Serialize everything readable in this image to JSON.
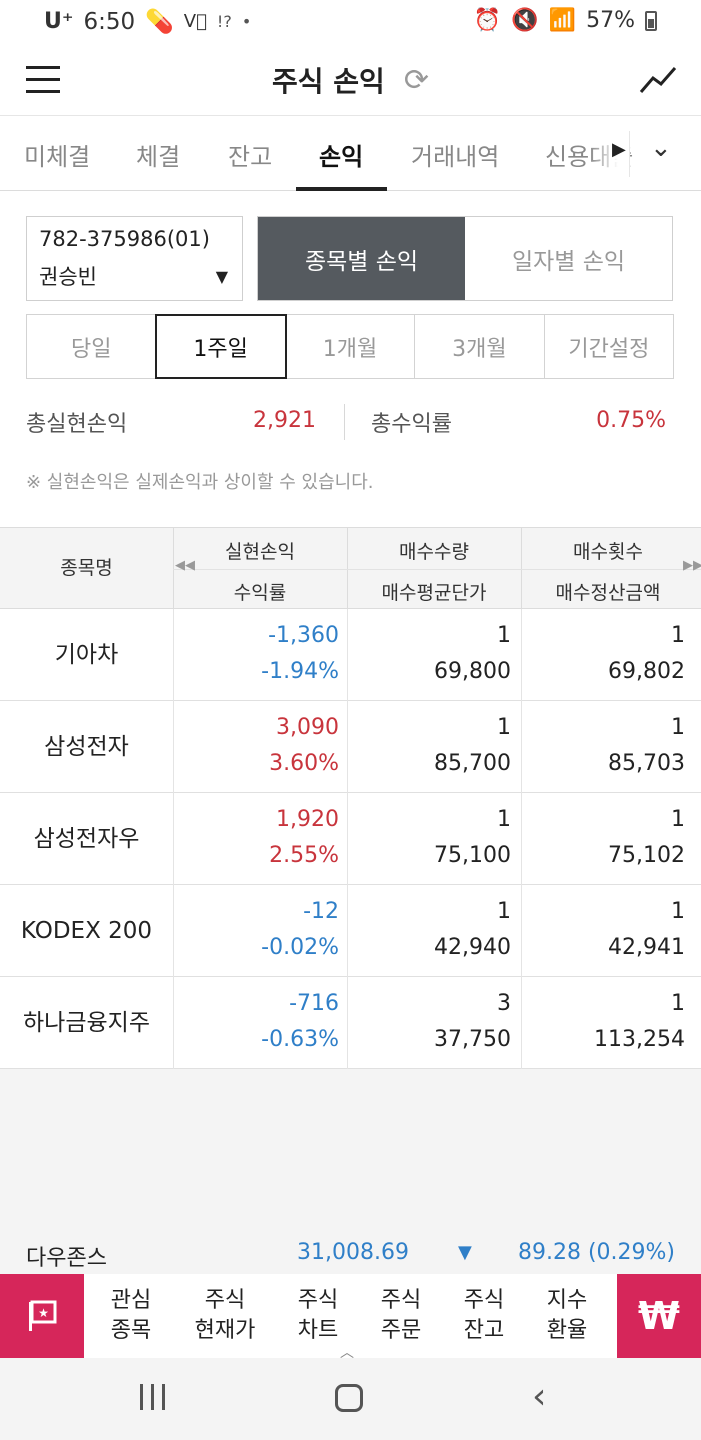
{
  "status_bar": {
    "carrier": "U⁺",
    "time": "6:50",
    "extra": "!?",
    "dot": "•",
    "battery": "57%"
  },
  "header": {
    "title": "주식 손익"
  },
  "tabs": [
    {
      "label": "미체결",
      "active": false
    },
    {
      "label": "체결",
      "active": false
    },
    {
      "label": "잔고",
      "active": false
    },
    {
      "label": "손익",
      "active": true
    },
    {
      "label": "거래내역",
      "active": false
    },
    {
      "label": "신용대출",
      "active": false
    }
  ],
  "account": {
    "number": "782-375986(01)",
    "name": "권승빈"
  },
  "view_toggle": {
    "by_stock": "종목별 손익",
    "by_date": "일자별 손익"
  },
  "periods": [
    {
      "label": "당일",
      "active": false
    },
    {
      "label": "1주일",
      "active": true
    },
    {
      "label": "1개월",
      "active": false
    },
    {
      "label": "3개월",
      "active": false
    },
    {
      "label": "기간설정",
      "active": false
    }
  ],
  "summary": {
    "total_label": "총실현손익",
    "total_value": "2,921",
    "rate_label": "총수익률",
    "rate_value": "0.75%"
  },
  "note": "※ 실현손익은 실제손익과 상이할 수 있습니다.",
  "table": {
    "headers": {
      "name": "종목명",
      "col1_top": "실현손익",
      "col1_bot": "수익률",
      "col2_top": "매수수량",
      "col2_bot": "매수평균단가",
      "col3_top": "매수횟수",
      "col3_bot": "매수정산금액"
    },
    "rows": [
      {
        "name": "기아차",
        "profit": "-1,360",
        "rate": "-1.94%",
        "qty": "1",
        "avg_price": "69,800",
        "count": "1",
        "amount": "69,802",
        "sign": "neg"
      },
      {
        "name": "삼성전자",
        "profit": "3,090",
        "rate": "3.60%",
        "qty": "1",
        "avg_price": "85,700",
        "count": "1",
        "amount": "85,703",
        "sign": "pos"
      },
      {
        "name": "삼성전자우",
        "profit": "1,920",
        "rate": "2.55%",
        "qty": "1",
        "avg_price": "75,100",
        "count": "1",
        "amount": "75,102",
        "sign": "pos"
      },
      {
        "name": "KODEX 200",
        "profit": "-12",
        "rate": "-0.02%",
        "qty": "1",
        "avg_price": "42,940",
        "count": "1",
        "amount": "42,941",
        "sign": "neg"
      },
      {
        "name": "하나금융지주",
        "profit": "-716",
        "rate": "-0.63%",
        "qty": "3",
        "avg_price": "37,750",
        "count": "1",
        "amount": "113,254",
        "sign": "neg"
      }
    ]
  },
  "ticker": {
    "name": "다우존스",
    "value": "31,008.69",
    "change": "89.28 (0.29%)"
  },
  "quick_menu": [
    {
      "line1": "관심",
      "line2": "종목"
    },
    {
      "line1": "주식",
      "line2": "현재가"
    },
    {
      "line1": "주식",
      "line2": "차트"
    },
    {
      "line1": "주식",
      "line2": "주문"
    },
    {
      "line1": "주식",
      "line2": "잔고"
    },
    {
      "line1": "지수",
      "line2": "환율"
    }
  ],
  "quick_right_symbol": "₩",
  "colors": {
    "accent": "#d6265a",
    "gain": "#c8343c",
    "loss": "#2f7fc8",
    "toggle_active": "#555a5f"
  }
}
